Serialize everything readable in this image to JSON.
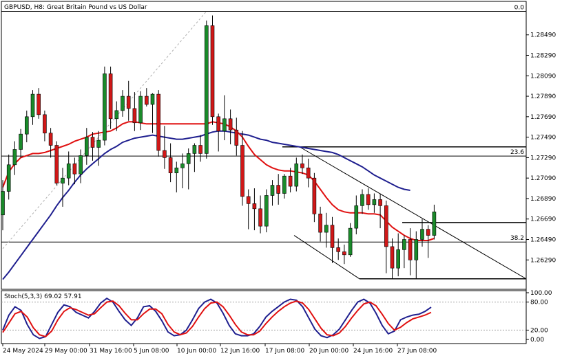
{
  "chart_data": {
    "type": "candlestick",
    "title": "GBPUSD, H8:  Great Britain Pound vs US Dollar",
    "y_ticks": [
      "1.28490",
      "1.28290",
      "1.28090",
      "1.27890",
      "1.27690",
      "1.27490",
      "1.27290",
      "1.27090",
      "1.26890",
      "1.26690",
      "1.26490",
      "1.26290"
    ],
    "ylim": [
      1.2605,
      1.2873
    ],
    "x_ticks": [
      "24 May 2024",
      "29 May 00:00",
      "31 May 16:00",
      "5 Jun 08:00",
      "10 Jun 00:00",
      "12 Jun 16:00",
      "17 Jun 08:00",
      "20 Jun 00:00",
      "24 Jun 16:00",
      "27 Jun 08:00"
    ],
    "fib_levels": [
      {
        "label": "0.0",
        "price": 1.2872
      },
      {
        "label": "23.6",
        "price": 1.27305
      },
      {
        "label": "38.2",
        "price": 1.26465
      }
    ],
    "horizontal_lines": [
      1.27395,
      1.26655,
      1.26105
    ],
    "candles": [
      [
        1.2673,
        1.2707,
        1.2658,
        1.2696
      ],
      [
        1.2696,
        1.2732,
        1.2688,
        1.2722
      ],
      [
        1.2722,
        1.2745,
        1.2712,
        1.2737
      ],
      [
        1.2737,
        1.2757,
        1.2729,
        1.2752
      ],
      [
        1.2752,
        1.2775,
        1.2744,
        1.2769
      ],
      [
        1.2769,
        1.2795,
        1.2761,
        1.2791
      ],
      [
        1.2791,
        1.2797,
        1.2767,
        1.2771
      ],
      [
        1.2771,
        1.2775,
        1.2745,
        1.2753
      ],
      [
        1.2753,
        1.2758,
        1.2729,
        1.2741
      ],
      [
        1.2741,
        1.2745,
        1.2702,
        1.2704
      ],
      [
        1.2704,
        1.2719,
        1.2681,
        1.2709
      ],
      [
        1.2709,
        1.2735,
        1.2702,
        1.2723
      ],
      [
        1.2723,
        1.2729,
        1.2703,
        1.2713
      ],
      [
        1.2713,
        1.2737,
        1.2704,
        1.2731
      ],
      [
        1.2731,
        1.2758,
        1.2722,
        1.2749
      ],
      [
        1.2749,
        1.2754,
        1.2726,
        1.2739
      ],
      [
        1.2739,
        1.2755,
        1.2721,
        1.2746
      ],
      [
        1.2746,
        1.2818,
        1.2741,
        1.2811
      ],
      [
        1.2811,
        1.2818,
        1.2757,
        1.2767
      ],
      [
        1.2767,
        1.2784,
        1.2755,
        1.2775
      ],
      [
        1.2775,
        1.2795,
        1.2769,
        1.2789
      ],
      [
        1.2789,
        1.2804,
        1.2765,
        1.2777
      ],
      [
        1.2777,
        1.2793,
        1.2755,
        1.2763
      ],
      [
        1.2763,
        1.2794,
        1.2756,
        1.2789
      ],
      [
        1.2789,
        1.2797,
        1.2779,
        1.2781
      ],
      [
        1.2781,
        1.2792,
        1.2753,
        1.2791
      ],
      [
        1.2791,
        1.2795,
        1.273,
        1.2736
      ],
      [
        1.2736,
        1.276,
        1.2718,
        1.2729
      ],
      [
        1.2729,
        1.2743,
        1.2705,
        1.2714
      ],
      [
        1.2714,
        1.2725,
        1.2695,
        1.2719
      ],
      [
        1.2719,
        1.2733,
        1.2699,
        1.2723
      ],
      [
        1.2723,
        1.2738,
        1.2698,
        1.2733
      ],
      [
        1.2733,
        1.2743,
        1.2715,
        1.2741
      ],
      [
        1.2741,
        1.2751,
        1.2725,
        1.2733
      ],
      [
        1.2733,
        1.2863,
        1.2728,
        1.2858
      ],
      [
        1.2858,
        1.2868,
        1.2761,
        1.2769
      ],
      [
        1.2769,
        1.2772,
        1.2735,
        1.2755
      ],
      [
        1.2755,
        1.279,
        1.2746,
        1.2767
      ],
      [
        1.2767,
        1.2776,
        1.2742,
        1.2756
      ],
      [
        1.2756,
        1.2768,
        1.2731,
        1.2741
      ],
      [
        1.2741,
        1.2755,
        1.2682,
        1.2691
      ],
      [
        1.2691,
        1.2698,
        1.2659,
        1.2684
      ],
      [
        1.2684,
        1.2699,
        1.2658,
        1.2679
      ],
      [
        1.2679,
        1.2692,
        1.2655,
        1.2662
      ],
      [
        1.2662,
        1.2698,
        1.2656,
        1.2692
      ],
      [
        1.2692,
        1.2707,
        1.2682,
        1.2702
      ],
      [
        1.2702,
        1.2713,
        1.2683,
        1.2694
      ],
      [
        1.2694,
        1.2713,
        1.2689,
        1.2711
      ],
      [
        1.2711,
        1.2719,
        1.2695,
        1.2701
      ],
      [
        1.2701,
        1.2729,
        1.2696,
        1.2723
      ],
      [
        1.2723,
        1.2732,
        1.2713,
        1.2719
      ],
      [
        1.2719,
        1.2728,
        1.27,
        1.2709
      ],
      [
        1.2709,
        1.2714,
        1.2666,
        1.2674
      ],
      [
        1.2674,
        1.2681,
        1.2647,
        1.2656
      ],
      [
        1.2656,
        1.2675,
        1.2641,
        1.2663
      ],
      [
        1.2663,
        1.2671,
        1.2626,
        1.2641
      ],
      [
        1.2641,
        1.265,
        1.2629,
        1.2637
      ],
      [
        1.2637,
        1.2644,
        1.2625,
        1.2634
      ],
      [
        1.2634,
        1.2665,
        1.2632,
        1.266
      ],
      [
        1.266,
        1.2692,
        1.2654,
        1.2682
      ],
      [
        1.2682,
        1.2698,
        1.2674,
        1.2693
      ],
      [
        1.2693,
        1.2699,
        1.2678,
        1.2683
      ],
      [
        1.2683,
        1.2694,
        1.2675,
        1.2688
      ],
      [
        1.2688,
        1.2694,
        1.266,
        1.2682
      ],
      [
        1.2682,
        1.2687,
        1.2616,
        1.2642
      ],
      [
        1.2642,
        1.265,
        1.2611,
        1.2621
      ],
      [
        1.2621,
        1.2655,
        1.2613,
        1.2639
      ],
      [
        1.2639,
        1.2653,
        1.2621,
        1.2649
      ],
      [
        1.2649,
        1.266,
        1.2614,
        1.2629
      ],
      [
        1.2629,
        1.2657,
        1.2611,
        1.2649
      ],
      [
        1.2649,
        1.2669,
        1.2642,
        1.2659
      ],
      [
        1.2659,
        1.2663,
        1.2631,
        1.2653
      ],
      [
        1.2653,
        1.2683,
        1.2649,
        1.2676
      ]
    ],
    "ma_red": [
      1.27,
      1.2715,
      1.2723,
      1.2729,
      1.2731,
      1.2733,
      1.2733,
      1.2734,
      1.2736,
      1.2738,
      1.274,
      1.2742,
      1.2745,
      1.2747,
      1.2749,
      1.2752,
      1.2753,
      1.2754,
      1.2755,
      1.2758,
      1.2762,
      1.2764,
      1.2764,
      1.2763,
      1.2762,
      1.2762,
      1.2762,
      1.2762,
      1.2762,
      1.2762,
      1.2762,
      1.2762,
      1.2762,
      1.2762,
      1.2762,
      1.2764,
      1.2763,
      1.2762,
      1.2759,
      1.2755,
      1.2749,
      1.274,
      1.2732,
      1.2727,
      1.2722,
      1.2719,
      1.2717,
      1.2716,
      1.2716,
      1.2715,
      1.2714,
      1.2712,
      1.2706,
      1.2698,
      1.269,
      1.2683,
      1.2678,
      1.2676,
      1.2675,
      1.2675,
      1.2675,
      1.2674,
      1.2674,
      1.2673,
      1.2667,
      1.2661,
      1.2657,
      1.2653,
      1.265,
      1.2648,
      1.2648,
      1.2648,
      1.265
    ],
    "ma_blue": [
      1.261,
      1.2617,
      1.2625,
      1.2633,
      1.2641,
      1.2649,
      1.2657,
      1.2665,
      1.2673,
      1.2682,
      1.269,
      1.2697,
      1.2705,
      1.2712,
      1.2718,
      1.2723,
      1.2728,
      1.2733,
      1.2737,
      1.274,
      1.2744,
      1.2746,
      1.2748,
      1.2749,
      1.275,
      1.2751,
      1.275,
      1.2749,
      1.2748,
      1.2747,
      1.2747,
      1.2748,
      1.2749,
      1.275,
      1.2752,
      1.2754,
      1.2755,
      1.2755,
      1.2754,
      1.2753,
      1.2752,
      1.2751,
      1.2749,
      1.2747,
      1.2746,
      1.2744,
      1.2743,
      1.2742,
      1.2741,
      1.274,
      1.2739,
      1.2738,
      1.2737,
      1.2736,
      1.2735,
      1.2734,
      1.2732,
      1.2729,
      1.2726,
      1.2723,
      1.272,
      1.2716,
      1.2712,
      1.2709,
      1.2706,
      1.2703,
      1.27,
      1.2698,
      1.2697
    ],
    "stoch": {
      "label": "Stoch(5,3,3) 69.02 57.91",
      "ticks": [
        "100.00",
        "80.00",
        "20.00",
        "0.00"
      ],
      "k": [
        20,
        52,
        70,
        62,
        32,
        10,
        2,
        6,
        32,
        58,
        74,
        70,
        58,
        52,
        46,
        60,
        78,
        88,
        80,
        60,
        42,
        30,
        46,
        70,
        72,
        60,
        40,
        16,
        8,
        10,
        20,
        42,
        66,
        80,
        86,
        78,
        56,
        30,
        12,
        8,
        8,
        12,
        28,
        48,
        60,
        70,
        80,
        86,
        84,
        70,
        46,
        22,
        8,
        4,
        10,
        22,
        42,
        62,
        80,
        86,
        78,
        56,
        30,
        12,
        18,
        42,
        48,
        52,
        54,
        60,
        69
      ],
      "d": [
        15,
        35,
        55,
        60,
        48,
        25,
        10,
        6,
        18,
        42,
        60,
        68,
        64,
        58,
        52,
        55,
        68,
        80,
        82,
        72,
        56,
        42,
        42,
        55,
        65,
        65,
        55,
        32,
        16,
        10,
        14,
        28,
        48,
        66,
        78,
        80,
        70,
        52,
        32,
        16,
        10,
        10,
        18,
        34,
        48,
        60,
        70,
        78,
        82,
        78,
        64,
        44,
        24,
        10,
        8,
        14,
        28,
        46,
        62,
        76,
        80,
        72,
        54,
        34,
        20,
        26,
        36,
        44,
        48,
        52,
        57.91
      ]
    }
  }
}
